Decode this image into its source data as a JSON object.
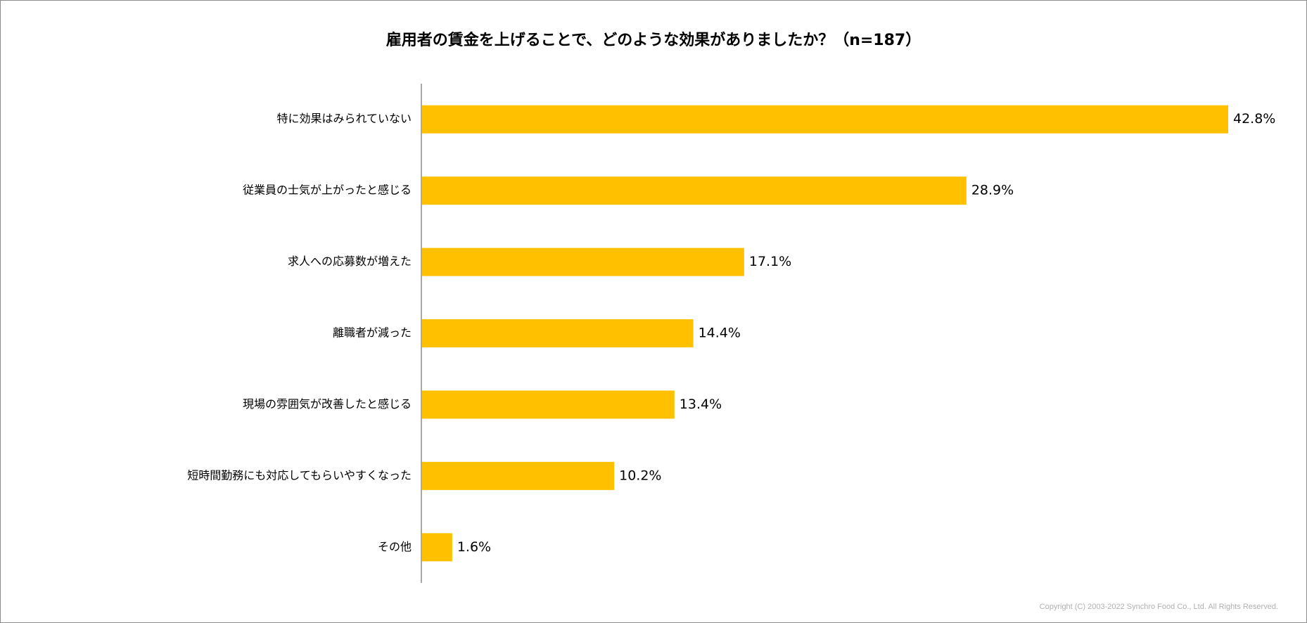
{
  "chart_data": {
    "type": "bar",
    "orientation": "horizontal",
    "title": "雇用者の賃金を上げることで、どのような効果がありましたか？（n=187）",
    "categories": [
      "特に効果はみられていない",
      "従業員の士気が上がったと感じる",
      "求人への応募数が増えた",
      "離職者が減った",
      "現場の雰囲気が改善したと感じる",
      "短時間勤務にも対応してもらいやすくなった",
      "その他"
    ],
    "values": [
      42.8,
      28.9,
      17.1,
      14.4,
      13.4,
      10.2,
      1.6
    ],
    "value_labels": [
      "42.8%",
      "28.9%",
      "17.1%",
      "14.4%",
      "13.4%",
      "10.2%",
      "1.6%"
    ],
    "unit": "%",
    "xlim": [
      0,
      42.8
    ],
    "xlabel": "",
    "ylabel": "",
    "grid": false,
    "legend": "none",
    "bar_color": "#FFC000",
    "axis_color": "#8c8c8c"
  },
  "footer": {
    "copyright": "Copyright (C) 2003-2022 Synchro Food Co., Ltd. All Rights Reserved."
  }
}
